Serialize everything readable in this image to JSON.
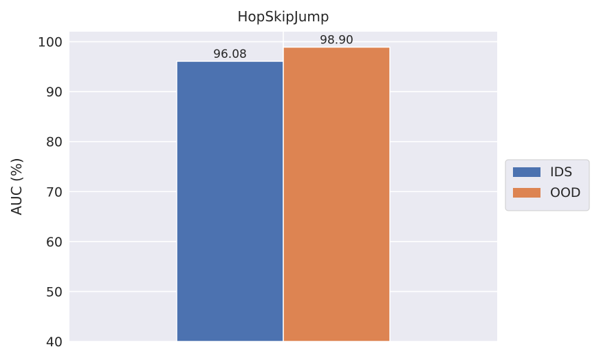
{
  "chart_data": {
    "type": "bar",
    "title": "HopSkipJump",
    "xlabel": "",
    "ylabel": "AUC (%)",
    "ylim": [
      40,
      102
    ],
    "yticks": [
      40,
      50,
      60,
      70,
      80,
      90,
      100
    ],
    "categories": [
      ""
    ],
    "series": [
      {
        "name": "IDS",
        "values": [
          96.08
        ],
        "label": "96.08",
        "color": "#4c72b0"
      },
      {
        "name": "OOD",
        "values": [
          98.9
        ],
        "label": "98.90",
        "color": "#dd8452"
      }
    ],
    "grid": true,
    "legend_position": "right",
    "background": "#eaeaf2"
  }
}
